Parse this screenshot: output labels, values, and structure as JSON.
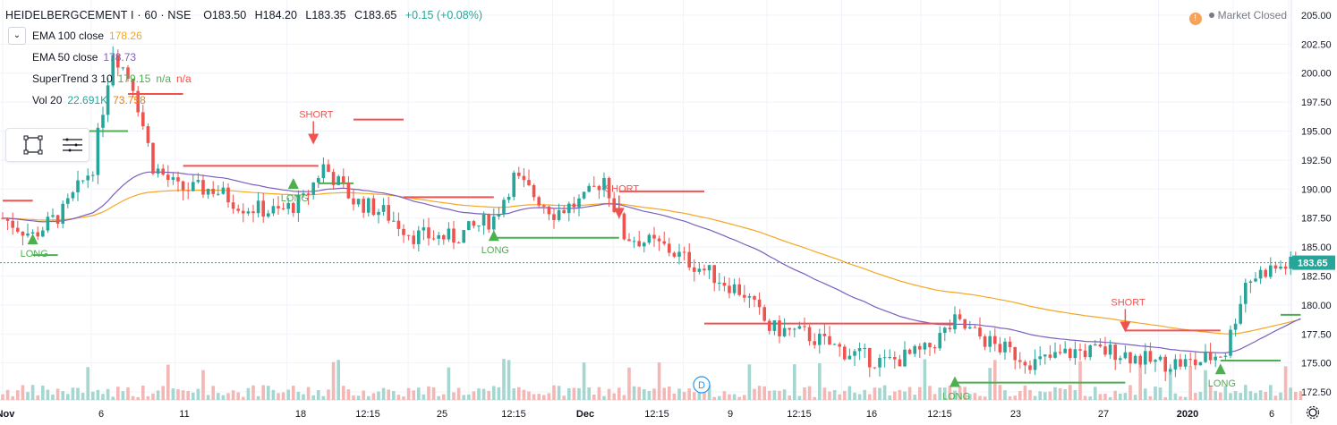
{
  "symbol": {
    "name": "HEIDELBERGCEMENT I · 60 · NSE",
    "open": "O183.50",
    "high": "H184.20",
    "low": "L183.35",
    "close": "C183.65",
    "change": "+0.15 (+0.08%)"
  },
  "indicators": [
    {
      "label": "EMA 100 close",
      "value": "178.26",
      "color": "#f5a623"
    },
    {
      "label": "EMA 50 close",
      "value": "178.73",
      "color": "#7b5fbf"
    },
    {
      "label": "SuperTrend 3 10",
      "value": "179.15",
      "value2": "n/a",
      "value3": "n/a",
      "color": "#4caf50",
      "color3": "#ef5350"
    },
    {
      "label": "Vol 20",
      "value": "22.691K",
      "value2": "73.758",
      "color": "#26a69a",
      "color2": "#f57c00"
    }
  ],
  "market_status": {
    "info_glyph": "!",
    "label": "Market Closed"
  },
  "price_axis": {
    "ticks": [
      "205.00",
      "202.50",
      "200.00",
      "197.50",
      "195.00",
      "192.50",
      "190.00",
      "187.50",
      "185.00",
      "182.50",
      "180.00",
      "177.50",
      "175.00",
      "172.50"
    ],
    "last_price_label": "183.65"
  },
  "time_axis": {
    "ticks": [
      "Nov",
      "6",
      "11",
      "18",
      "12:15",
      "25",
      "12:15",
      "Dec",
      "12:15",
      "9",
      "12:15",
      "16",
      "12:15",
      "23",
      "27",
      "2020",
      "6"
    ]
  },
  "signals": [
    {
      "text": "LONG",
      "type": "long"
    },
    {
      "text": "SHORT",
      "type": "short"
    },
    {
      "text": "LONG",
      "type": "long"
    },
    {
      "text": "LONG",
      "type": "long"
    },
    {
      "text": "SHORT",
      "type": "short"
    },
    {
      "text": "SHORT",
      "type": "short"
    },
    {
      "text": "LONG",
      "type": "long"
    },
    {
      "text": "LONG",
      "type": "long"
    }
  ],
  "dividend_marker": "D",
  "colors": {
    "up": "#26a69a",
    "down": "#ef5350",
    "ema100": "#f5a623",
    "ema50": "#7b5fbf",
    "supertrend_up": "#4caf50",
    "supertrend_down": "#ef5350",
    "vol_up": "#a5d6d0",
    "vol_down": "#f3b7b5",
    "last_price_bg": "#26a69a",
    "dividend": "#2196f3"
  },
  "chart_data": {
    "type": "candlestick",
    "title": "HEIDELBERGCEMENT I · 60 · NSE",
    "ylim": [
      171.5,
      206
    ],
    "last_price": 183.65,
    "supertrend": [
      {
        "from": 0,
        "to": 6,
        "value": 189.0,
        "trend": "down"
      },
      {
        "from": 6,
        "to": 11,
        "value": 184.3,
        "trend": "up"
      },
      {
        "from": 11,
        "to": 25,
        "value": 195.0,
        "trend": "up"
      },
      {
        "from": 25,
        "to": 36,
        "value": 198.2,
        "trend": "down"
      },
      {
        "from": 36,
        "to": 63,
        "value": 192.0,
        "trend": "down"
      },
      {
        "from": 63,
        "to": 70,
        "value": 190.5,
        "trend": "up"
      },
      {
        "from": 70,
        "to": 80,
        "value": 196.0,
        "trend": "down"
      },
      {
        "from": 80,
        "to": 98,
        "value": 189.3,
        "trend": "down"
      },
      {
        "from": 98,
        "to": 123,
        "value": 185.8,
        "trend": "up"
      },
      {
        "from": 123,
        "to": 140,
        "value": 189.8,
        "trend": "down"
      },
      {
        "from": 140,
        "to": 190,
        "value": 178.4,
        "trend": "down"
      },
      {
        "from": 190,
        "to": 224,
        "value": 173.3,
        "trend": "up"
      },
      {
        "from": 224,
        "to": 243,
        "value": 177.8,
        "trend": "down"
      },
      {
        "from": 243,
        "to": 255,
        "value": 175.2,
        "trend": "up"
      },
      {
        "from": 255,
        "to": 260,
        "value": 179.15,
        "trend": "up"
      }
    ],
    "signal_points": [
      {
        "bar": 6,
        "price": 186.0,
        "type": "long"
      },
      {
        "bar": 62,
        "price": 194.0,
        "type": "short"
      },
      {
        "bar": 58,
        "price": 190.8,
        "type": "long"
      },
      {
        "bar": 98,
        "price": 186.3,
        "type": "long"
      },
      {
        "bar": 123,
        "price": 187.6,
        "type": "short"
      },
      {
        "bar": 224,
        "price": 177.8,
        "type": "short"
      },
      {
        "bar": 190,
        "price": 173.7,
        "type": "long"
      },
      {
        "bar": 243,
        "price": 174.8,
        "type": "long"
      }
    ]
  }
}
